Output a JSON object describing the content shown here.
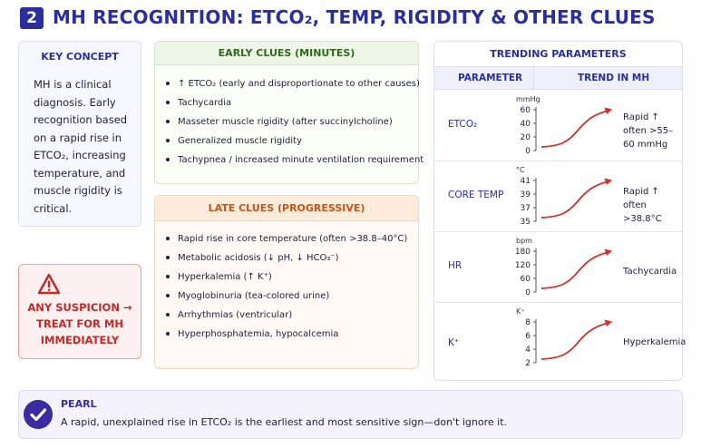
{
  "header": {
    "badge": "2",
    "title": "MH RECOGNITION: ETCO₂, TEMP, RIGIDITY & OTHER CLUES"
  },
  "key_concept": {
    "title": "KEY CONCEPT",
    "body": "MH is a clinical diagnosis. Early recognition based on a rapid rise in ETCO₂, increasing temperature, and muscle rigidity is critical."
  },
  "alert": {
    "icon": "warning-triangle-icon",
    "text": "ANY SUSPICION → TREAT FOR MH IMMEDIATELY",
    "color": "#c62828"
  },
  "early_clues": {
    "title": "EARLY CLUES (MINUTES)",
    "items": [
      "↑ ETCO₂ (early and disproportionate to other causes)",
      "Tachycardia",
      "Masseter muscle rigidity (after succinylcholine)",
      "Generalized muscle rigidity",
      "Tachypnea / increased minute ventilation requirement"
    ]
  },
  "late_clues": {
    "title": "LATE CLUES (PROGRESSIVE)",
    "items": [
      "Rapid rise in core temperature (often >38.8–40°C)",
      "Metabolic acidosis (↓ pH, ↓ HCO₃⁻)",
      "Hyperkalemia (↑ K⁺)",
      "Myoglobinuria (tea-colored urine)",
      "Arrhythmias (ventricular)",
      "Hyperphosphatemia, hypocalcemia"
    ]
  },
  "trending": {
    "title": "TRENDING PARAMETERS",
    "col_param": "PARAMETER",
    "col_trend": "TREND IN MH",
    "rows": [
      {
        "param": "ETCO₂",
        "unit": "mmHg",
        "ticks": [
          "60",
          "40",
          "20",
          "0"
        ],
        "desc": "Rapid ↑ often >55–60 mmHg"
      },
      {
        "param": "CORE TEMP",
        "unit": "°C",
        "ticks": [
          "41",
          "39",
          "37",
          "35"
        ],
        "desc": "Rapid ↑ often >38.8°C"
      },
      {
        "param": "HR",
        "unit": "bpm",
        "ticks": [
          "180",
          "120",
          "60",
          "0"
        ],
        "desc": "Tachycardia"
      },
      {
        "param": "K⁺",
        "unit": "K⁺",
        "ticks": [
          "8",
          "6",
          "4",
          "2"
        ],
        "desc": "Hyperkalemia"
      }
    ],
    "line_color": "#d32f2f"
  },
  "pearl": {
    "icon": "check-circle-icon",
    "title": "PEARL",
    "text": "A rapid, unexplained rise in ETCO₂ is the earliest and most sensitive sign—don't ignore it."
  }
}
